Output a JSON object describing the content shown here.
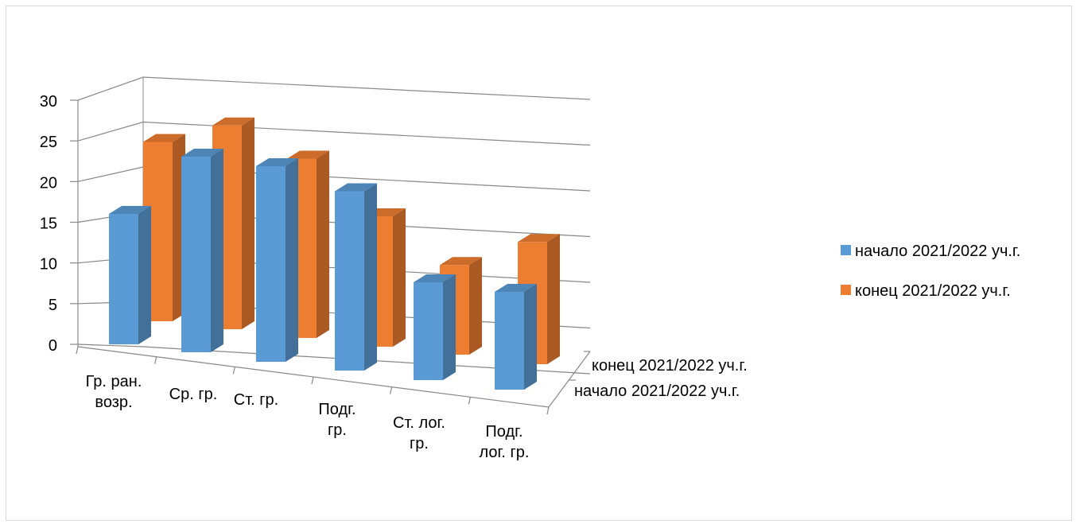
{
  "chart_data": {
    "type": "bar",
    "variant": "3d-clustered-column",
    "title": "",
    "categories": [
      [
        "Гр. ран.",
        "возр."
      ],
      [
        "Ср. гр."
      ],
      [
        "Ст. гр."
      ],
      [
        "Подг.",
        "гр."
      ],
      [
        "Ст. лог.",
        "гр."
      ],
      [
        "Подг.",
        "лог. гр."
      ]
    ],
    "series": [
      {
        "name": "начало 2021/2022 уч.г.",
        "values": [
          16,
          24,
          24,
          22,
          12,
          12
        ],
        "color": "#5b9bd5"
      },
      {
        "name": "конец 2021/2022 уч.г.",
        "values": [
          22,
          25,
          22,
          16,
          11,
          15
        ],
        "color": "#ed7d31"
      }
    ],
    "depth_axis_labels": [
      "конец 2021/2022 уч.г.",
      "начало 2021/2022 уч.г."
    ],
    "ylim": [
      0,
      30
    ],
    "yticks": [
      0,
      5,
      10,
      15,
      20,
      25,
      30
    ],
    "grid": true,
    "legend": "right",
    "xlabel": "",
    "ylabel": ""
  }
}
